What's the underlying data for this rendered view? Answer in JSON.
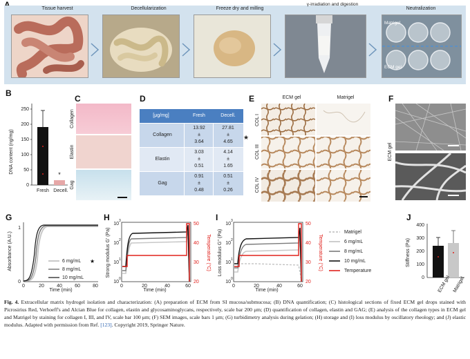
{
  "panels": {
    "a": "A",
    "b": "B",
    "c": "C",
    "d": "D",
    "e": "E",
    "f": "F",
    "g": "G",
    "h": "H",
    "i": "I",
    "j": "J"
  },
  "panel_a": {
    "steps": [
      "Tissue harvest",
      "Decellularization",
      "Freeze dry and milling",
      "γ-irradiation and digestion",
      "Neutralization"
    ],
    "neutral_labels": {
      "top": "Matrigel",
      "bottom": "ECM gel"
    }
  },
  "panel_b": {
    "ylabel": "DNA content (ng/mg)",
    "yticks": [
      "0",
      "50",
      "100",
      "150",
      "200",
      "250"
    ],
    "categories": [
      "Fresh",
      "Decell."
    ],
    "marker": "*"
  },
  "panel_c": {
    "rows": [
      "Collagen",
      "Elastin",
      "Gag"
    ]
  },
  "panel_d": {
    "headers": [
      "[μg/mg]",
      "Fresh",
      "Decell."
    ],
    "rows": [
      {
        "name": "Collagen",
        "fresh": [
          "13.92",
          "±",
          "3.64"
        ],
        "decell": [
          "27.81",
          "±",
          "4.65"
        ]
      },
      {
        "name": "Elastin",
        "fresh": [
          "3.03",
          "±",
          "0.51"
        ],
        "decell": [
          "4.14",
          "±",
          "1.65"
        ]
      },
      {
        "name": "Gag",
        "fresh": [
          "0.91",
          "±",
          "0.48"
        ],
        "decell": [
          "0.51",
          "±",
          "0.26"
        ]
      }
    ],
    "star": "★"
  },
  "panel_e": {
    "cols": [
      "ECM gel",
      "Matrigel"
    ],
    "rows": [
      "COL I",
      "COL III",
      "COL IV"
    ]
  },
  "panel_f": {
    "label": "ECM gel"
  },
  "panel_g": {
    "ylabel": "Absorbance (A.U.)",
    "xlabel": "Time (min)",
    "yticks": [
      "0",
      "1"
    ],
    "xticks": [
      "0",
      "20",
      "40",
      "60",
      "80"
    ],
    "legend": [
      "6 mg/mL",
      "8 mg/mL",
      "10 mg/mL"
    ],
    "star": "★"
  },
  "panel_h": {
    "ylabel": "Strong modulus G' (Pa)",
    "y2label": "Temperature (°C)",
    "xlabel": "Time (min)",
    "yticks": [
      "10",
      "10",
      "10",
      "10"
    ],
    "yexp": [
      "3",
      "2",
      "1",
      "0"
    ],
    "y2ticks": [
      "50",
      "40",
      "30",
      "20"
    ],
    "xticks": [
      "0",
      "20",
      "40",
      "60"
    ]
  },
  "panel_i": {
    "ylabel": "Loss modulus G'' (Pa)",
    "y2label": "Temperature (°C)",
    "xlabel": "Time (min)",
    "yticks": [
      "10",
      "10",
      "10",
      "10"
    ],
    "yexp": [
      "3",
      "2",
      "1",
      "0"
    ],
    "y2ticks": [
      "50",
      "40",
      "30",
      "20"
    ],
    "xticks": [
      "0",
      "20",
      "40",
      "60"
    ],
    "legend": [
      "Matrigel",
      "6 mg/mL",
      "8 mg/mL",
      "10 mg/mL",
      "Temperature"
    ]
  },
  "panel_j": {
    "ylabel": "Stiffness (Pa)",
    "yticks": [
      "0",
      "100",
      "200",
      "300",
      "400"
    ],
    "categories": [
      "ECM gel",
      "Matrigel"
    ]
  },
  "colors": {
    "panel_bg": "#d3e2ee",
    "table_header": "#4a7fc1",
    "table_row": "#d7e3f1",
    "red": "#e0201b"
  },
  "caption": {
    "fig": "Fig. 4.",
    "text": " Extracellular matrix hydrogel isolation and characterization: (A) preparation of ECM from SI mucosa/submucosa; (B) DNA quantification; (C) histological sections of fixed ECM gel drops stained with Picrosirius Red, Verhoeff's and Alcian Blue for collagen, elastin and glycosaminoglycans, respectively, scale bar 200 μm; (D) quantification of collagen, elastin and GAG; (E) analysis of the collagen types in ECM gel and Matrigel by staining for collagen I, III, and IV, scale bar 100 μm; (F) SEM images, scale bars 1 μm; (G) turbidimetry analysis during gelation; (H) storage and (I) loss modulus by oscillatory rheology; and (J) elastic modulus. Adapted with permission from Ref.",
    "ref": "[123]",
    "tail": ". Copyright 2019, Springer Nature."
  }
}
